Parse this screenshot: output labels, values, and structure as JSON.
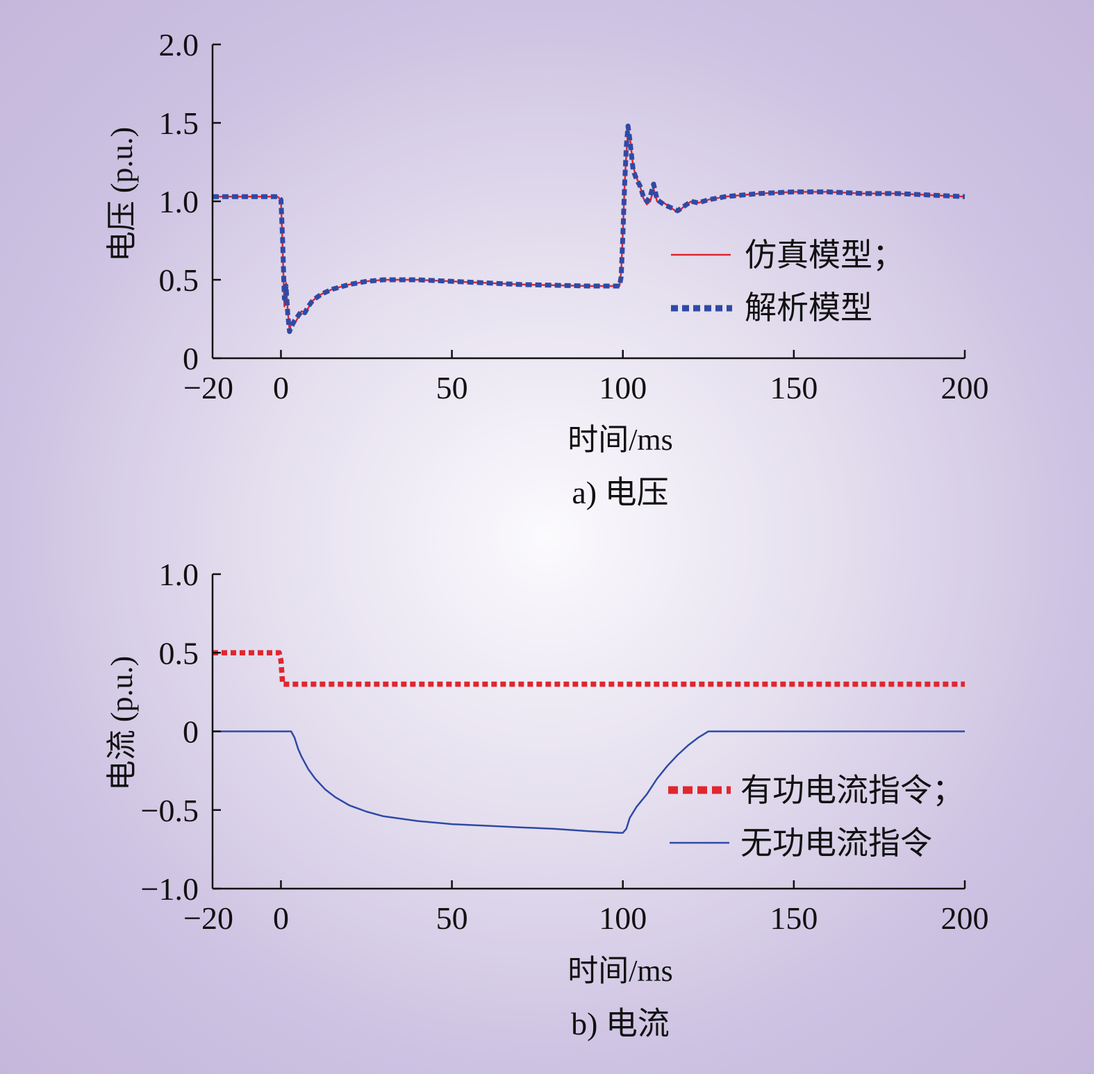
{
  "chart_data": [
    {
      "type": "line",
      "caption": "a) 电压",
      "xlabel": "时间/ms",
      "ylabel": "电压 (p.u.)",
      "xlim": [
        -20,
        200
      ],
      "ylim": [
        0,
        2.0
      ],
      "x_ticks": [
        -20,
        0,
        50,
        100,
        150,
        200
      ],
      "x_tick_labels": [
        "−20",
        "0",
        "50",
        "100",
        "150",
        "200"
      ],
      "y_ticks": [
        0,
        0.5,
        1.0,
        1.5,
        2.0
      ],
      "y_tick_labels": [
        "0",
        "0.5",
        "1.0",
        "1.5",
        "2.0"
      ],
      "grid": false,
      "legend_position": "right-middle",
      "series": [
        {
          "name": "仿真模型；",
          "color": "#e0262f",
          "style": "solid",
          "x": [
            -20,
            -1,
            0,
            0.5,
            1,
            1.5,
            2,
            2.5,
            3,
            4,
            5,
            6,
            7,
            8,
            9,
            10,
            12,
            15,
            20,
            25,
            30,
            40,
            50,
            60,
            70,
            80,
            90,
            99,
            99.5,
            100,
            100.5,
            101,
            101.5,
            102,
            103,
            104,
            105,
            106,
            107,
            108,
            109,
            110,
            112,
            114,
            116,
            118,
            120,
            122,
            125,
            130,
            140,
            150,
            160,
            170,
            180,
            190,
            200
          ],
          "y": [
            1.03,
            1.03,
            1.01,
            0.7,
            0.33,
            0.48,
            0.3,
            0.18,
            0.22,
            0.22,
            0.26,
            0.3,
            0.29,
            0.32,
            0.36,
            0.38,
            0.41,
            0.44,
            0.47,
            0.49,
            0.5,
            0.5,
            0.49,
            0.48,
            0.47,
            0.465,
            0.46,
            0.46,
            0.55,
            0.8,
            1.1,
            1.3,
            1.45,
            1.42,
            1.22,
            1.15,
            1.1,
            1.02,
            0.98,
            1.0,
            1.08,
            1.0,
            0.99,
            0.96,
            0.93,
            0.97,
            1.0,
            0.99,
            1.01,
            1.03,
            1.05,
            1.06,
            1.06,
            1.05,
            1.05,
            1.04,
            1.03
          ]
        },
        {
          "name": "解析模型",
          "color": "#2f4aa5",
          "style": "dotted",
          "x": [
            -20,
            -1,
            0,
            0.5,
            1,
            1.5,
            2,
            2.5,
            3,
            4,
            5,
            6,
            7,
            8,
            9,
            10,
            12,
            15,
            20,
            25,
            30,
            40,
            50,
            60,
            70,
            80,
            90,
            99,
            99.5,
            100,
            100.5,
            101,
            101.5,
            102,
            103,
            104,
            105,
            106,
            107,
            108,
            109,
            110,
            112,
            114,
            116,
            118,
            120,
            122,
            125,
            130,
            140,
            150,
            160,
            170,
            180,
            190,
            200
          ],
          "y": [
            1.03,
            1.03,
            1.01,
            0.75,
            0.38,
            0.46,
            0.28,
            0.17,
            0.2,
            0.24,
            0.27,
            0.3,
            0.29,
            0.33,
            0.36,
            0.38,
            0.41,
            0.44,
            0.47,
            0.49,
            0.5,
            0.5,
            0.49,
            0.48,
            0.47,
            0.465,
            0.46,
            0.46,
            0.52,
            0.78,
            1.1,
            1.35,
            1.48,
            1.4,
            1.2,
            1.14,
            1.1,
            1.03,
            1.0,
            1.03,
            1.11,
            1.01,
            0.98,
            0.96,
            0.94,
            0.97,
            1.0,
            0.99,
            1.01,
            1.03,
            1.05,
            1.06,
            1.06,
            1.05,
            1.05,
            1.04,
            1.03
          ]
        }
      ]
    },
    {
      "type": "line",
      "caption": "b) 电流",
      "xlabel": "时间/ms",
      "ylabel": "电流 (p.u.)",
      "xlim": [
        -20,
        200
      ],
      "ylim": [
        -1.0,
        1.0
      ],
      "x_ticks": [
        -20,
        0,
        50,
        100,
        150,
        200
      ],
      "x_tick_labels": [
        "−20",
        "0",
        "50",
        "100",
        "150",
        "200"
      ],
      "y_ticks": [
        -1.0,
        -0.5,
        0,
        0.5,
        1.0
      ],
      "y_tick_labels": [
        "−1.0",
        "−0.5",
        "0",
        "0.5",
        "1.0"
      ],
      "grid": false,
      "legend_position": "bottom-right",
      "series": [
        {
          "name": "有功电流指令；",
          "color": "#e0262f",
          "style": "dotted",
          "x": [
            -20,
            -0.5,
            0,
            0.5,
            200
          ],
          "y": [
            0.5,
            0.5,
            0.45,
            0.3,
            0.3
          ]
        },
        {
          "name": "无功电流指令",
          "color": "#2f4aa5",
          "style": "solid",
          "x": [
            -20,
            3,
            4,
            5,
            6,
            8,
            10,
            13,
            16,
            20,
            25,
            30,
            40,
            50,
            60,
            70,
            80,
            90,
            99,
            100,
            101,
            102,
            104,
            107,
            110,
            113,
            116,
            119,
            122,
            125,
            200
          ],
          "y": [
            0,
            0,
            -0.04,
            -0.11,
            -0.16,
            -0.24,
            -0.3,
            -0.37,
            -0.42,
            -0.47,
            -0.51,
            -0.54,
            -0.57,
            -0.59,
            -0.6,
            -0.61,
            -0.62,
            -0.635,
            -0.645,
            -0.645,
            -0.62,
            -0.55,
            -0.48,
            -0.4,
            -0.3,
            -0.22,
            -0.15,
            -0.09,
            -0.04,
            0,
            0
          ]
        }
      ]
    }
  ]
}
